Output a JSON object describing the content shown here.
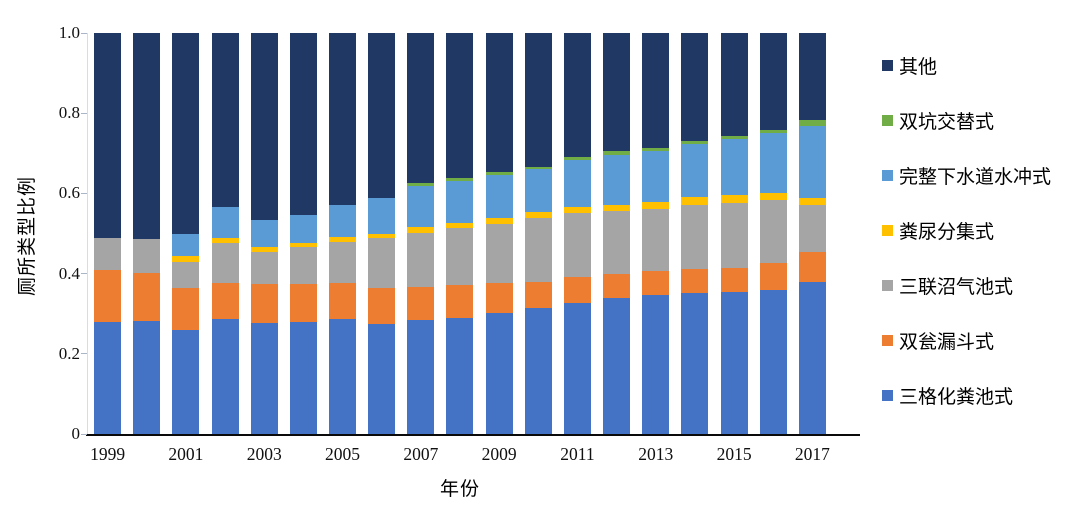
{
  "chart_data": {
    "type": "bar",
    "stacked": true,
    "percent_stacked": true,
    "title": "",
    "xlabel": "年份",
    "ylabel": "厕所类型比例",
    "ylim": [
      0,
      1
    ],
    "grid": false,
    "legend_position": "right",
    "y_tick_labels": [
      "0",
      "0.2",
      "0.4",
      "0.6",
      "0.8",
      "1.0"
    ],
    "y_tick_values": [
      0,
      0.2,
      0.4,
      0.6,
      0.8,
      1.0
    ],
    "x_tick_labels": [
      "1999",
      "2001",
      "2003",
      "2005",
      "2007",
      "2009",
      "2011",
      "2013",
      "2015",
      "2017"
    ],
    "categories": [
      1999,
      2000,
      2001,
      2002,
      2003,
      2004,
      2005,
      2006,
      2007,
      2008,
      2009,
      2010,
      2011,
      2012,
      2013,
      2014,
      2015,
      2016,
      2017
    ],
    "series": [
      {
        "name": "三格化粪池式",
        "key": "three-compartment-septic",
        "color": "#4472C4",
        "values": [
          0.28,
          0.283,
          0.26,
          0.287,
          0.276,
          0.279,
          0.286,
          0.274,
          0.285,
          0.29,
          0.301,
          0.315,
          0.327,
          0.34,
          0.346,
          0.352,
          0.353,
          0.36,
          0.38
        ]
      },
      {
        "name": "双瓮漏斗式",
        "key": "double-urn-funnel",
        "color": "#ED7D31",
        "values": [
          0.13,
          0.119,
          0.105,
          0.09,
          0.099,
          0.096,
          0.091,
          0.091,
          0.082,
          0.081,
          0.076,
          0.065,
          0.065,
          0.058,
          0.061,
          0.059,
          0.062,
          0.066,
          0.075
        ]
      },
      {
        "name": "三联沼气池式",
        "key": "triple-biogas",
        "color": "#A5A5A5",
        "values": [
          0.08,
          0.084,
          0.065,
          0.1,
          0.08,
          0.091,
          0.103,
          0.123,
          0.134,
          0.144,
          0.147,
          0.158,
          0.158,
          0.158,
          0.154,
          0.161,
          0.161,
          0.158,
          0.117
        ]
      },
      {
        "name": "粪尿分集式",
        "key": "urine-diverting",
        "color": "#FFC000",
        "values": [
          0,
          0,
          0.015,
          0.013,
          0.012,
          0.01,
          0.012,
          0.01,
          0.015,
          0.012,
          0.015,
          0.015,
          0.016,
          0.016,
          0.017,
          0.02,
          0.021,
          0.018,
          0.017
        ]
      },
      {
        "name": "完整下水道水冲式",
        "key": "sewer-flush",
        "color": "#5B9BD5",
        "values": [
          0,
          0,
          0.055,
          0.075,
          0.068,
          0.07,
          0.078,
          0.091,
          0.102,
          0.104,
          0.107,
          0.107,
          0.118,
          0.125,
          0.128,
          0.132,
          0.138,
          0.149,
          0.179
        ]
      },
      {
        "name": "双坑交替式",
        "key": "alternating-twin-pit",
        "color": "#70AD47",
        "values": [
          0,
          0,
          0,
          0,
          0,
          0,
          0,
          0,
          0.009,
          0.008,
          0.007,
          0.007,
          0.007,
          0.008,
          0.008,
          0.007,
          0.008,
          0.008,
          0.014
        ]
      },
      {
        "name": "其他",
        "key": "other",
        "color": "#1F3864",
        "values": [
          0.51,
          0.514,
          0.5,
          0.435,
          0.465,
          0.454,
          0.43,
          0.411,
          0.373,
          0.361,
          0.347,
          0.333,
          0.309,
          0.295,
          0.286,
          0.269,
          0.257,
          0.241,
          0.218
        ]
      }
    ],
    "legend": [
      {
        "label": "其他",
        "key": "other",
        "color": "#1F3864"
      },
      {
        "label": "双坑交替式",
        "key": "alternating-twin-pit",
        "color": "#70AD47"
      },
      {
        "label": "完整下水道水冲式",
        "key": "sewer-flush",
        "color": "#5B9BD5"
      },
      {
        "label": "粪尿分集式",
        "key": "urine-diverting",
        "color": "#FFC000"
      },
      {
        "label": "三联沼气池式",
        "key": "triple-biogas",
        "color": "#A5A5A5"
      },
      {
        "label": "双瓮漏斗式",
        "key": "double-urn-funnel",
        "color": "#ED7D31"
      },
      {
        "label": "三格化粪池式",
        "key": "three-compartment-septic",
        "color": "#4472C4"
      }
    ]
  }
}
